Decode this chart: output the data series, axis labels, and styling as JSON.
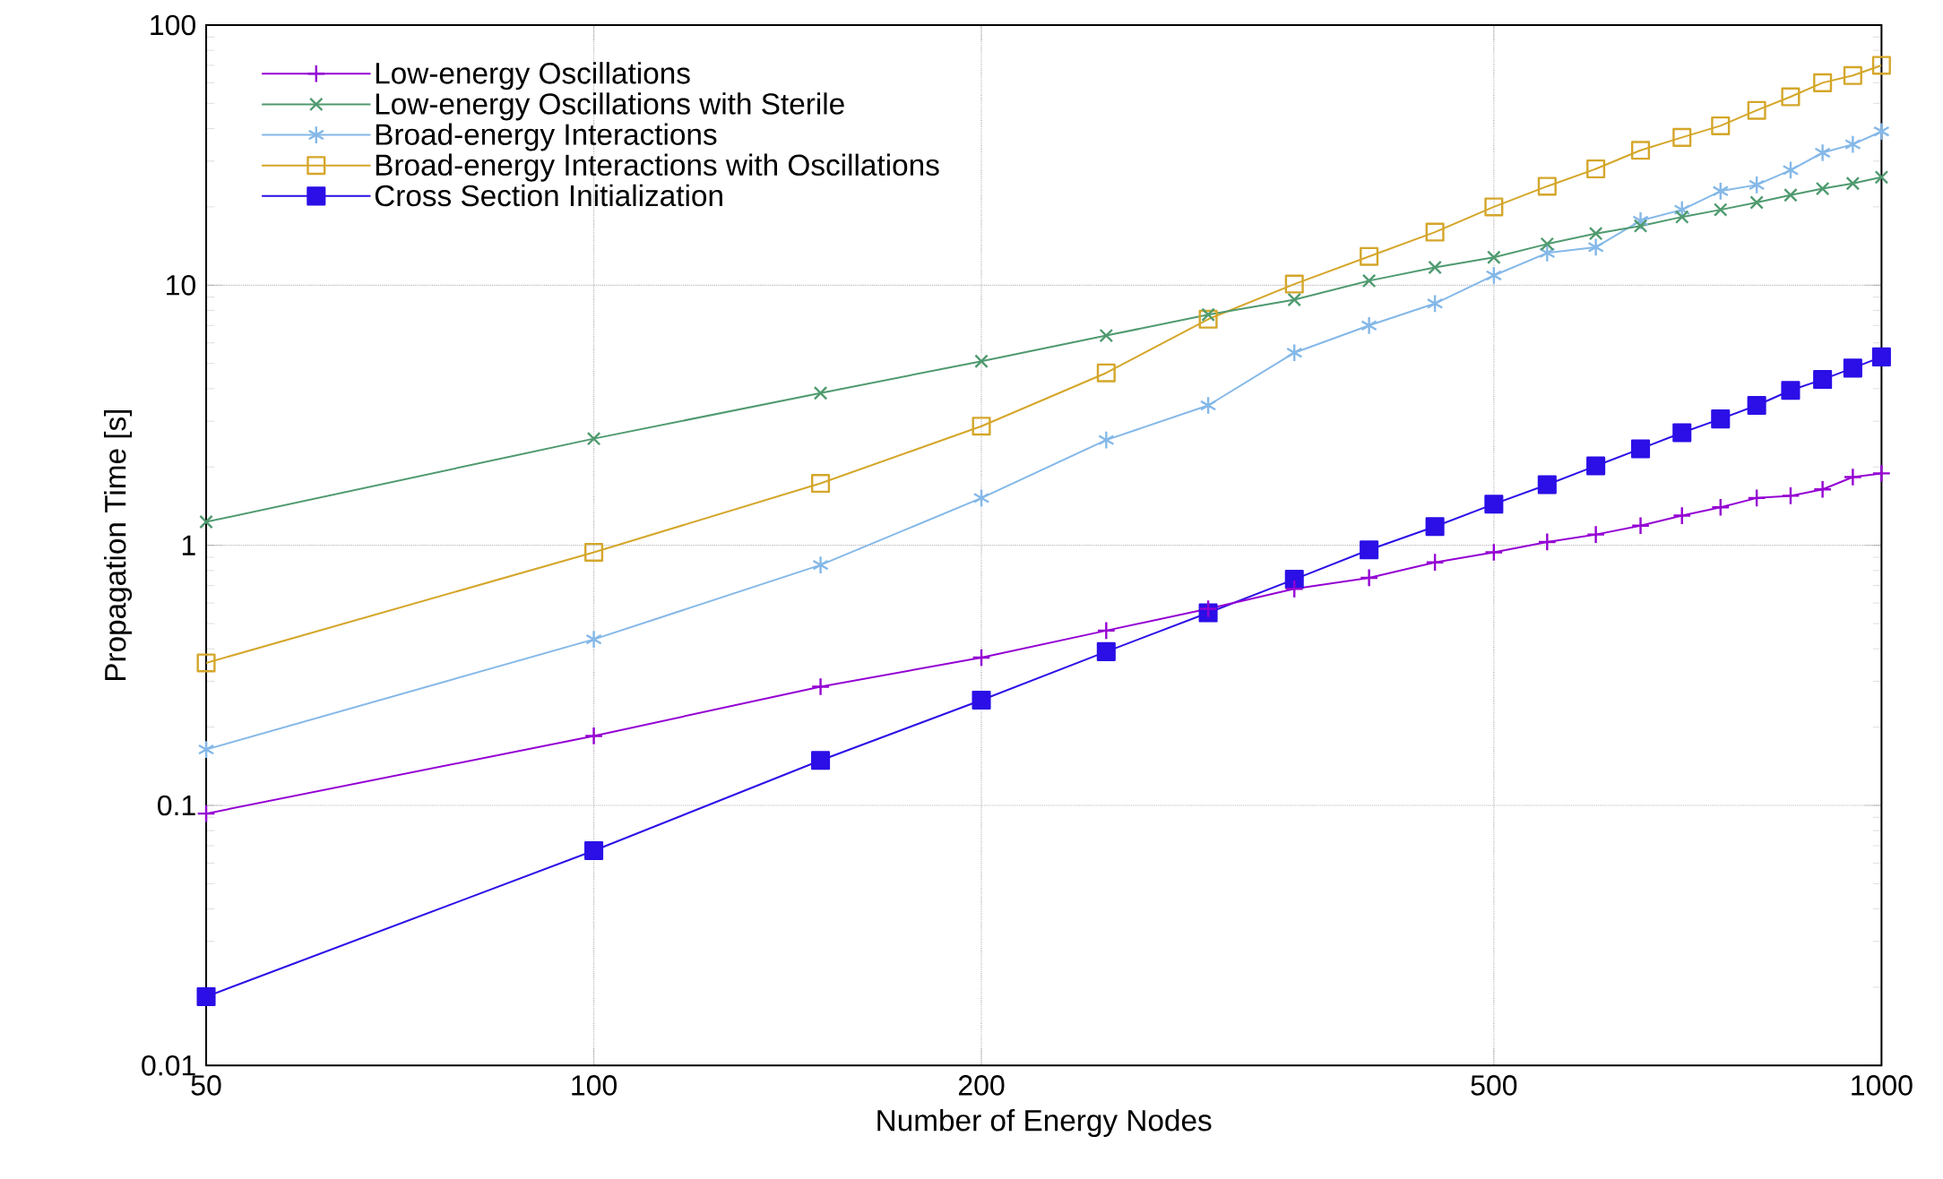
{
  "chart_data": {
    "type": "line",
    "xlabel": "Number of Energy Nodes",
    "ylabel": "Propagation Time [s]",
    "log": "xy",
    "grid": true,
    "legend": "top left",
    "xlim": [
      50,
      1000
    ],
    "ylim": [
      0.01,
      100
    ],
    "xticks": [
      50,
      100,
      200,
      500,
      1000
    ],
    "yticks": [
      0.01,
      0.1,
      1,
      10,
      100
    ],
    "x": [
      50,
      100,
      150,
      200,
      250,
      300,
      350,
      400,
      450,
      500,
      550,
      600,
      650,
      700,
      750,
      800,
      850,
      900,
      950,
      1000
    ],
    "series": [
      {
        "name": "Low-energy Oscillations",
        "color": "#9400d3",
        "marker": "plus",
        "values": [
          0.093,
          0.185,
          0.286,
          0.37,
          0.47,
          0.57,
          0.68,
          0.75,
          0.86,
          0.94,
          1.03,
          1.1,
          1.19,
          1.3,
          1.4,
          1.52,
          1.55,
          1.64,
          1.83,
          1.89
        ]
      },
      {
        "name": "Low-energy Oscillations with Sterile",
        "color": "#4f9a6f",
        "marker": "cross",
        "values": [
          1.23,
          2.57,
          3.85,
          5.1,
          6.4,
          7.7,
          8.8,
          10.4,
          11.7,
          12.8,
          14.4,
          15.8,
          16.9,
          18.3,
          19.5,
          20.8,
          22.2,
          23.5,
          24.6,
          26
        ]
      },
      {
        "name": "Broad-energy Interactions",
        "color": "#84b8e8",
        "marker": "cross",
        "values": [
          0.164,
          0.435,
          0.84,
          1.52,
          2.54,
          3.45,
          5.5,
          7.0,
          8.5,
          10.9,
          13.3,
          14.0,
          17.7,
          19.5,
          23,
          24.3,
          27.7,
          32.3,
          34.8,
          39
        ]
      },
      {
        "name": "Broad-energy Interactions with Oscillations",
        "color": "#d4a62a",
        "marker": "square",
        "values": [
          0.353,
          0.94,
          1.73,
          2.87,
          4.6,
          7.4,
          10.1,
          12.9,
          16,
          20,
          24,
          28,
          33,
          37,
          41,
          47,
          53,
          60,
          64,
          70
        ]
      },
      {
        "name": "Cross Section Initialization",
        "color": "#2b0fe6",
        "marker": "square",
        "values": [
          0.0184,
          0.067,
          0.149,
          0.254,
          0.39,
          0.55,
          0.74,
          0.96,
          1.18,
          1.44,
          1.71,
          2.02,
          2.35,
          2.71,
          3.06,
          3.45,
          3.94,
          4.34,
          4.8,
          5.3
        ]
      }
    ]
  }
}
